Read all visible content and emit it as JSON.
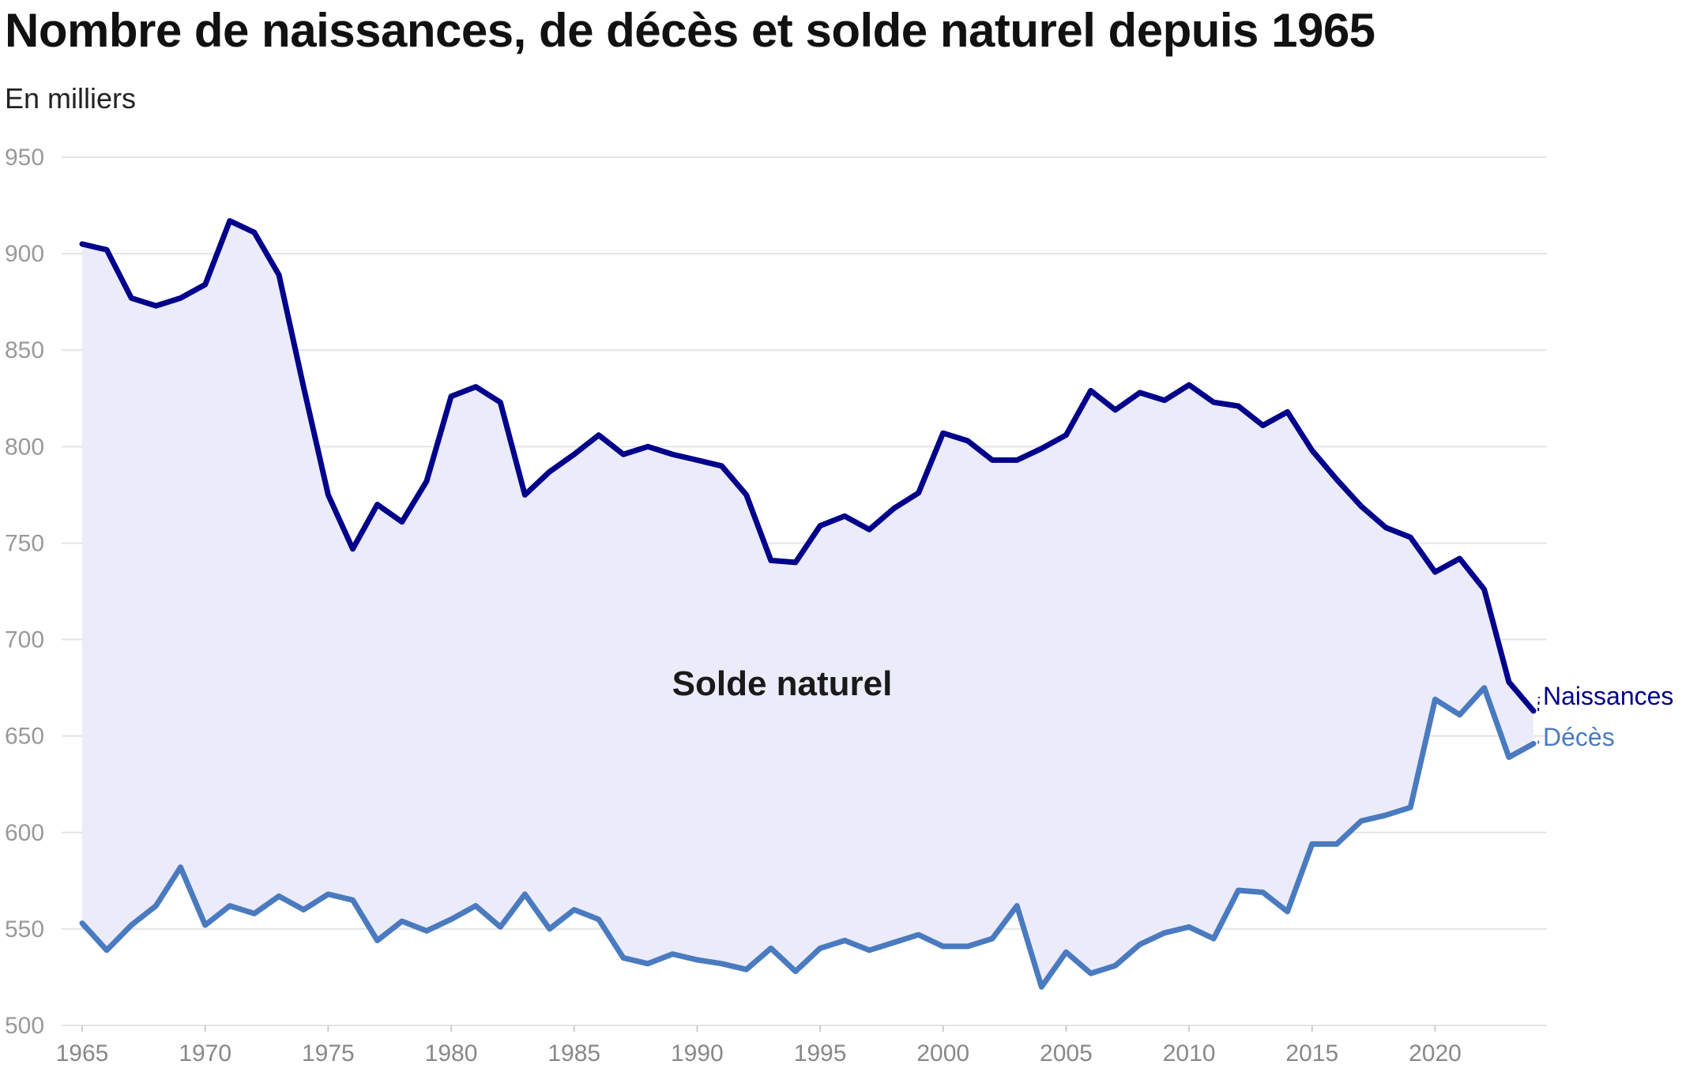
{
  "title": "Nombre de naissances, de décès et solde naturel depuis 1965",
  "subtitle": "En milliers",
  "colors": {
    "naissances": "#00008b",
    "deces": "#4a7abf",
    "area_fill": "#ebebfa",
    "grid": "#e4e4e4"
  },
  "chart_data": {
    "type": "line",
    "title": "Nombre de naissances, de décès et solde naturel depuis 1965",
    "subtitle": "En milliers",
    "xlabel": "",
    "ylabel": "",
    "ylim": [
      500,
      950
    ],
    "xlim": [
      1965,
      2024
    ],
    "grid": true,
    "y_ticks": [
      500,
      550,
      600,
      650,
      700,
      750,
      800,
      850,
      900,
      950
    ],
    "x_ticks": [
      1965,
      1970,
      1975,
      1980,
      1985,
      1990,
      1995,
      2000,
      2005,
      2010,
      2015,
      2020
    ],
    "annotation": "Solde naturel",
    "x": [
      1965,
      1966,
      1967,
      1968,
      1969,
      1970,
      1971,
      1972,
      1973,
      1974,
      1975,
      1976,
      1977,
      1978,
      1979,
      1980,
      1981,
      1982,
      1983,
      1984,
      1985,
      1986,
      1987,
      1988,
      1989,
      1990,
      1991,
      1992,
      1993,
      1994,
      1995,
      1996,
      1997,
      1998,
      1999,
      2000,
      2001,
      2002,
      2003,
      2004,
      2005,
      2006,
      2007,
      2008,
      2009,
      2010,
      2011,
      2012,
      2013,
      2014,
      2015,
      2016,
      2017,
      2018,
      2019,
      2020,
      2021,
      2022,
      2023,
      2024
    ],
    "series": [
      {
        "name": "Naissances",
        "values": [
          905,
          902,
          877,
          873,
          877,
          884,
          917,
          911,
          889,
          831,
          775,
          747,
          770,
          761,
          782,
          826,
          831,
          823,
          775,
          787,
          796,
          806,
          796,
          800,
          796,
          793,
          790,
          775,
          741,
          740,
          759,
          764,
          757,
          768,
          776,
          807,
          803,
          793,
          793,
          799,
          806,
          829,
          819,
          828,
          824,
          832,
          823,
          821,
          811,
          818,
          798,
          783,
          769,
          758,
          753,
          735,
          742,
          726,
          678,
          663
        ]
      },
      {
        "name": "Décès",
        "values": [
          553,
          539,
          552,
          562,
          582,
          552,
          562,
          558,
          567,
          560,
          568,
          565,
          544,
          554,
          549,
          555,
          562,
          551,
          568,
          550,
          560,
          555,
          535,
          532,
          537,
          534,
          532,
          529,
          540,
          528,
          540,
          544,
          539,
          543,
          547,
          541,
          541,
          545,
          562,
          520,
          538,
          527,
          531,
          542,
          548,
          551,
          545,
          570,
          569,
          559,
          594,
          594,
          606,
          609,
          613,
          669,
          661,
          675,
          639,
          646
        ]
      }
    ]
  }
}
